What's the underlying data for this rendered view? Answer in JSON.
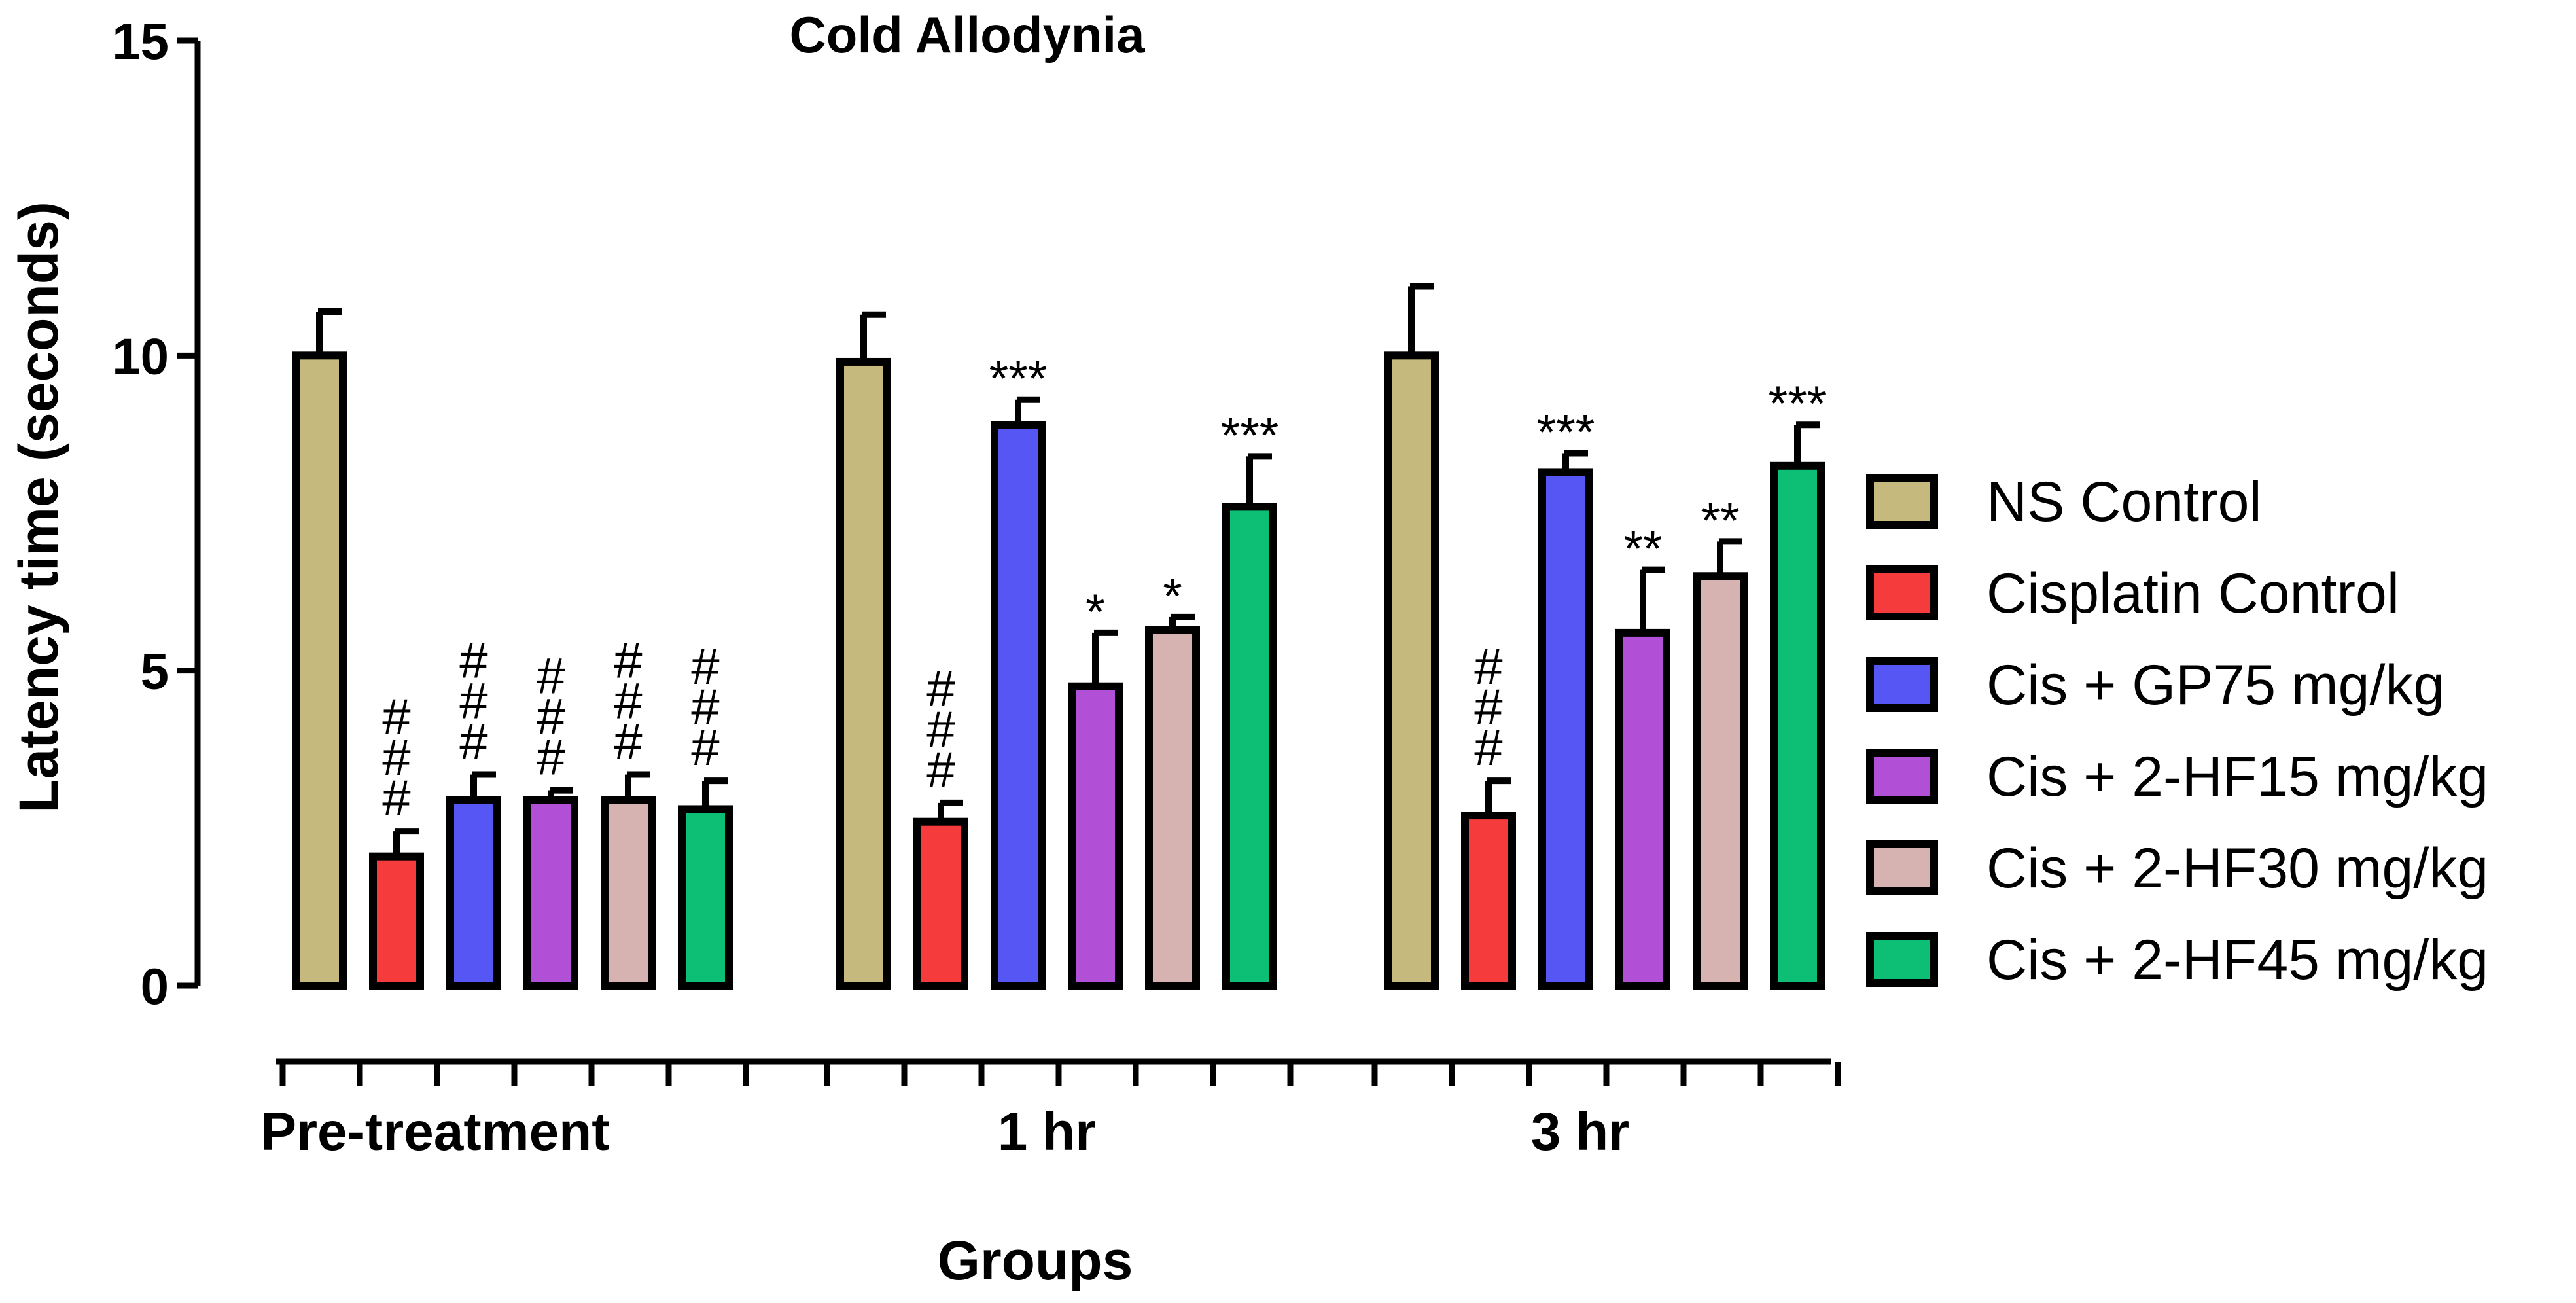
{
  "chart_data": {
    "type": "bar",
    "title": "Cold Allodynia",
    "xlabel": "Groups",
    "ylabel": "Latency time (seconds)",
    "ylim": [
      0,
      15
    ],
    "yticks": [
      0,
      5,
      10,
      15
    ],
    "grid": false,
    "legend_position": "right",
    "categories": [
      "Pre-treatment",
      "1 hr",
      "3 hr"
    ],
    "series": [
      {
        "name": "NS Control",
        "color": "#c5b97e",
        "values": [
          10.0,
          9.9,
          10.0
        ],
        "errors": [
          0.7,
          0.75,
          1.1
        ],
        "annotations": [
          "",
          "",
          ""
        ]
      },
      {
        "name": "Cisplatin Control",
        "color": "#f53b3b",
        "values": [
          2.05,
          2.6,
          2.7
        ],
        "errors": [
          0.4,
          0.3,
          0.55
        ],
        "annotations": [
          "#\n#\n#",
          "#\n#\n#",
          "#\n#\n#"
        ]
      },
      {
        "name": "Cis + GP75 mg/kg",
        "color": "#5656f5",
        "values": [
          2.95,
          8.9,
          8.15
        ],
        "errors": [
          0.4,
          0.4,
          0.3
        ],
        "annotations": [
          "#\n#\n#",
          "***",
          "***"
        ]
      },
      {
        "name": "Cis + 2-HF15 mg/kg",
        "color": "#b150d6",
        "values": [
          2.95,
          4.75,
          5.6
        ],
        "errors": [
          0.15,
          0.85,
          1.0
        ],
        "annotations": [
          "#\n#\n#",
          "*",
          "**"
        ]
      },
      {
        "name": "Cis + 2-HF30 mg/kg",
        "color": "#d6b2b0",
        "values": [
          2.95,
          5.65,
          6.5
        ],
        "errors": [
          0.4,
          0.2,
          0.55
        ],
        "annotations": [
          "#\n#\n#",
          "*",
          "**"
        ]
      },
      {
        "name": "Cis + 2-HF45 mg/kg",
        "color": "#0dbf74",
        "values": [
          2.8,
          7.6,
          8.25
        ],
        "errors": [
          0.45,
          0.8,
          0.65
        ],
        "annotations": [
          "#\n#\n#",
          "***",
          "***"
        ]
      }
    ]
  }
}
